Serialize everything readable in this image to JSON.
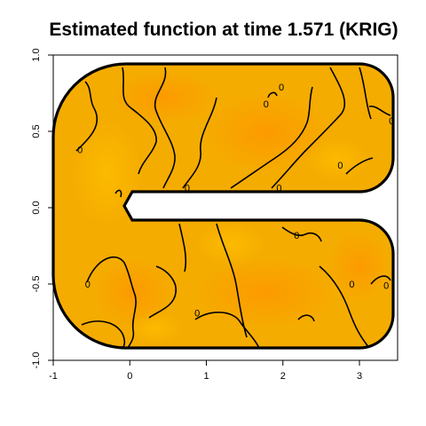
{
  "chart_data": {
    "type": "heatmap",
    "title": "Estimated function at time 1.571 (KRIG)",
    "xlabel": "",
    "ylabel": "",
    "xlim": [
      -1,
      3.5
    ],
    "ylim": [
      -1,
      1
    ],
    "x_ticks": [
      -1,
      0,
      1,
      2,
      3
    ],
    "y_ticks": [
      -1.0,
      -0.5,
      0.0,
      0.5,
      1.0
    ],
    "x_tick_labels": [
      "-1",
      "0",
      "1",
      "2",
      "3"
    ],
    "y_tick_labels": [
      "-1.0",
      "-0.5",
      "0.0",
      "0.5",
      "1.0"
    ],
    "domain_shape": "C-shaped region",
    "colors": {
      "low": "#f0a800",
      "mid": "#f7b300",
      "high": "#ff9d00",
      "boundary": "#000000"
    },
    "contour_level": 0,
    "contour_labels": [
      {
        "text": "0",
        "x": -0.65,
        "y": 0.38
      },
      {
        "text": "0",
        "x": 1.98,
        "y": 0.79
      },
      {
        "text": "0",
        "x": 1.78,
        "y": 0.68
      },
      {
        "text": "0",
        "x": 3.42,
        "y": 0.57
      },
      {
        "text": "0",
        "x": 0.75,
        "y": 0.13
      },
      {
        "text": "0",
        "x": 1.95,
        "y": 0.13
      },
      {
        "text": "0",
        "x": 2.75,
        "y": 0.28
      },
      {
        "text": "0",
        "x": 2.18,
        "y": -0.18
      },
      {
        "text": "0",
        "x": -0.55,
        "y": -0.5
      },
      {
        "text": "0",
        "x": 0.88,
        "y": -0.69
      },
      {
        "text": "0",
        "x": 2.9,
        "y": -0.5
      },
      {
        "text": "0",
        "x": 3.35,
        "y": -0.51
      }
    ]
  }
}
